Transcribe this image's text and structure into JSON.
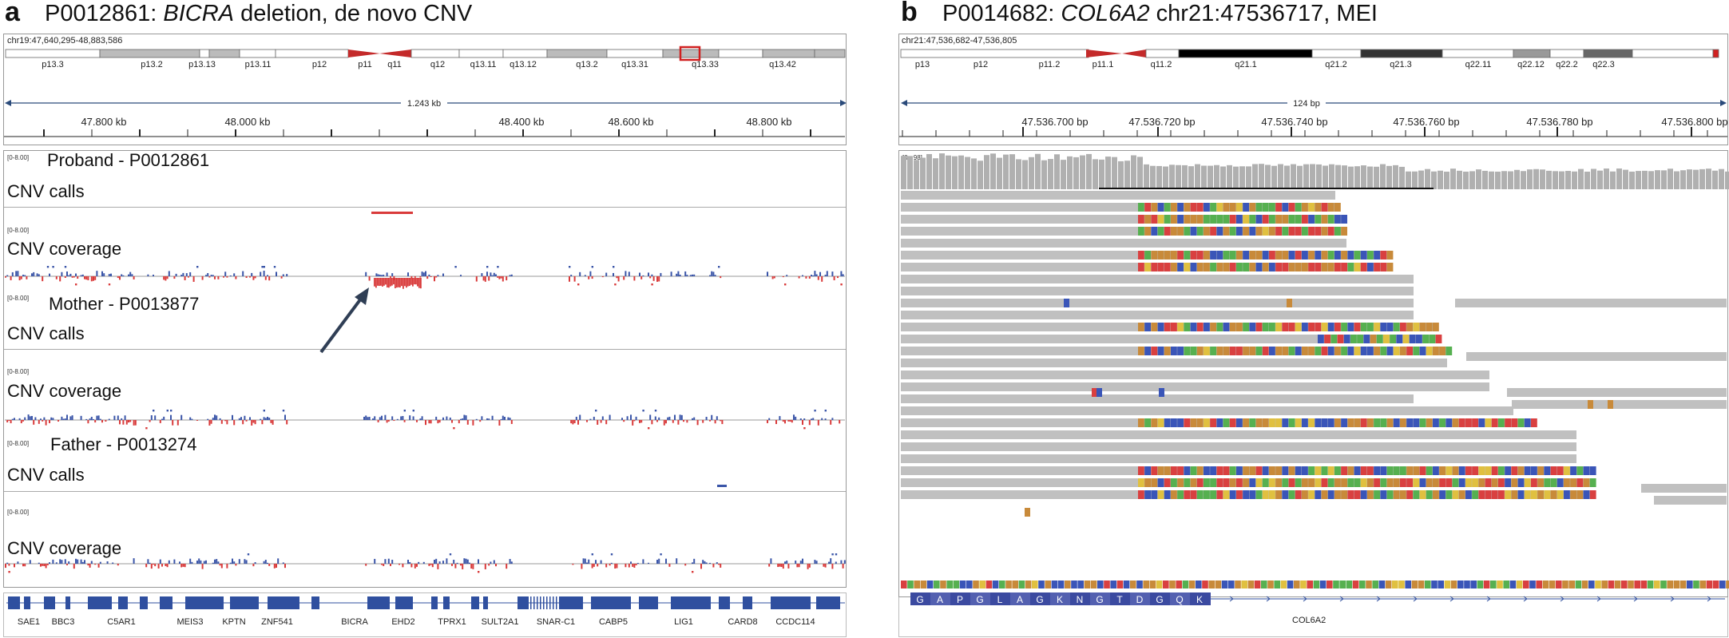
{
  "panel_a": {
    "label": "a",
    "id": "P0012861",
    "gene": "BICRA",
    "rest": " deletion, de novo CNV",
    "locus": "chr19:47,640,295-48,883,586",
    "bands": [
      "p13.3",
      "p13.2",
      "p13.13",
      "p13.11",
      "p12",
      "p11",
      "q11",
      "q12",
      "q13.11",
      "q13.12",
      "q13.2",
      "q13.31",
      "q13.33",
      "q13.42"
    ],
    "span": "1.243 kb",
    "ticks": [
      "47.800 kb",
      "48.000 kb",
      "48.400 kb",
      "48.600 kb",
      "48.800 kb"
    ],
    "data_range": "[0-8.00]",
    "tracks": [
      {
        "sample": "Proband - P0012861",
        "calls": "CNV calls",
        "coverage": "CNV coverage"
      },
      {
        "sample": "Mother - P0013877",
        "calls": "CNV calls",
        "coverage": "CNV coverage"
      },
      {
        "sample": "Father - P0013274",
        "calls": "CNV calls",
        "coverage": "CNV coverage"
      }
    ],
    "genes": [
      "SAE1",
      "BBC3",
      "C5AR1",
      "MEIS3",
      "KPTN",
      "ZNF541",
      "BICRA",
      "EHD2",
      "TPRX1",
      "SULT2A1",
      "SNAR-C1",
      "CABP5",
      "LIG1",
      "CARD8",
      "CCDC114"
    ]
  },
  "panel_b": {
    "label": "b",
    "id": "P0014682",
    "gene": "COL6A2",
    "rest": " chr21:47536717, MEI",
    "locus": "chr21:47,536,682-47,536,805",
    "bands": [
      "p13",
      "p12",
      "p11.2",
      "p11.1",
      "q11.2",
      "q21.1",
      "q21.2",
      "q21.3",
      "q22.11",
      "q22.12",
      "q22.2",
      "q22.3"
    ],
    "span": "124 bp",
    "ticks": [
      "47.536.700 bp",
      "47.536.720 bp",
      "47.536.740 bp",
      "47.536.760 bp",
      "47.536.780 bp",
      "47.536.800 bp"
    ],
    "coverage_range": "[0 - 98]",
    "amino_acids": [
      "G",
      "A",
      "P",
      "G",
      "L",
      "A",
      "G",
      "K",
      "N",
      "G",
      "T",
      "D",
      "G",
      "Q",
      "K"
    ],
    "gene_label": "COL6A2"
  },
  "colors": {
    "deletion_red": "#d93a3a",
    "gain_blue": "#3a55a8",
    "read_gray": "#c0c0c0",
    "gene_blue": "#2f4f9f"
  }
}
